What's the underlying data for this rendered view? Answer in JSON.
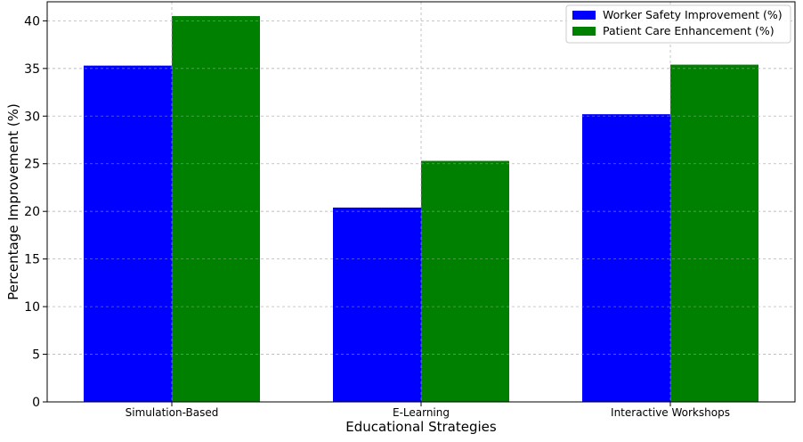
{
  "chart_data": {
    "type": "bar",
    "title": "",
    "xlabel": "Educational Strategies",
    "ylabel": "Percentage Improvement (%)",
    "categories": [
      "Simulation-Based",
      "E-Learning",
      "Interactive Workshops"
    ],
    "series": [
      {
        "name": "Worker Safety Improvement (%)",
        "values": [
          35.3,
          20.4,
          30.2
        ],
        "color": "#0000ff"
      },
      {
        "name": "Patient Care Enhancement (%)",
        "values": [
          40.5,
          25.3,
          35.4
        ],
        "color": "#008000"
      }
    ],
    "ylim": [
      0,
      42
    ],
    "yticks": [
      0,
      5,
      10,
      15,
      20,
      25,
      30,
      35,
      40
    ],
    "grid": true,
    "legend_position": "top-right"
  }
}
